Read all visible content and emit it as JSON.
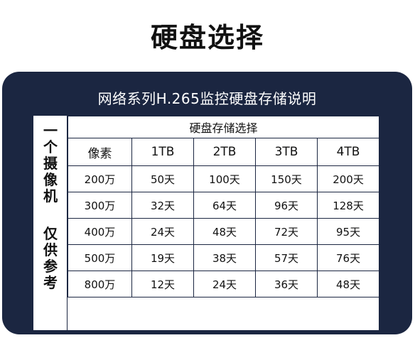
{
  "page_title": "硬盘选择",
  "panel": {
    "title": "网络系列H.265监控硬盘存储说明",
    "side_label_top": [
      "一",
      "个",
      "摄",
      "像",
      "机"
    ],
    "side_label_bottom": [
      "仅",
      "供",
      "参",
      "考"
    ],
    "table": {
      "header": "硬盘存储选择",
      "columns": [
        "像素",
        "1TB",
        "2TB",
        "3TB",
        "4TB"
      ],
      "rows": [
        [
          "200万",
          "50天",
          "100天",
          "150天",
          "200天"
        ],
        [
          "300万",
          "32天",
          "64天",
          "96天",
          "128天"
        ],
        [
          "400万",
          "24天",
          "48天",
          "72天",
          "95天"
        ],
        [
          "500万",
          "19天",
          "38天",
          "57天",
          "76天"
        ],
        [
          "800万",
          "12天",
          "24天",
          "36天",
          "48天"
        ]
      ]
    }
  }
}
